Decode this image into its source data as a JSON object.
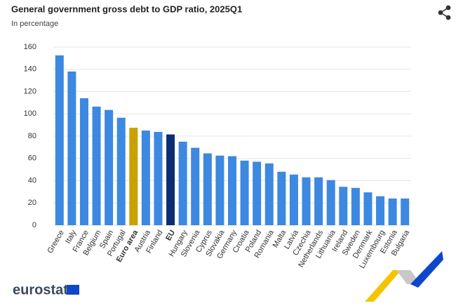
{
  "chart_data": {
    "type": "bar",
    "title": "General government gross debt to GDP ratio, 2025Q1",
    "subtitle": "In percentage",
    "categories": [
      "Greece",
      "Italy",
      "France",
      "Belgium",
      "Spain",
      "Portugal",
      "Euro area",
      "Austria",
      "Finland",
      "EU",
      "Hungary",
      "Slovenia",
      "Cyprus",
      "Slovakia",
      "Germany",
      "Croatia",
      "Poland",
      "Romania",
      "Malta",
      "Latvia",
      "Czechia",
      "Netherlands",
      "Lithuania",
      "Ireland",
      "Sweden",
      "Denmark",
      "Luxembourg",
      "Estonia",
      "Bulgaria"
    ],
    "values": [
      152.5,
      138,
      114,
      106.5,
      103.5,
      96.5,
      87.5,
      85,
      83.8,
      81.5,
      75,
      69.5,
      64.5,
      62.5,
      62,
      58,
      57,
      55.5,
      48,
      45.5,
      43,
      43,
      40.5,
      34.5,
      33.5,
      29.5,
      26,
      24,
      24
    ],
    "color": "#3d88e1",
    "colors": [
      "#3d88e1",
      "#3d88e1",
      "#3d88e1",
      "#3d88e1",
      "#3d88e1",
      "#3d88e1",
      "#c9a100",
      "#3d88e1",
      "#3d88e1",
      "#0c2d72",
      "#3d88e1",
      "#3d88e1",
      "#3d88e1",
      "#3d88e1",
      "#3d88e1",
      "#3d88e1",
      "#3d88e1",
      "#3d88e1",
      "#3d88e1",
      "#3d88e1",
      "#3d88e1",
      "#3d88e1",
      "#3d88e1",
      "#3d88e1",
      "#3d88e1",
      "#3d88e1",
      "#3d88e1",
      "#3d88e1",
      "#3d88e1"
    ],
    "ylim": [
      0,
      160
    ],
    "yticks": [
      0,
      20,
      40,
      60,
      80,
      100,
      120,
      140,
      160
    ],
    "grid": true
  },
  "logo": "eurostat"
}
